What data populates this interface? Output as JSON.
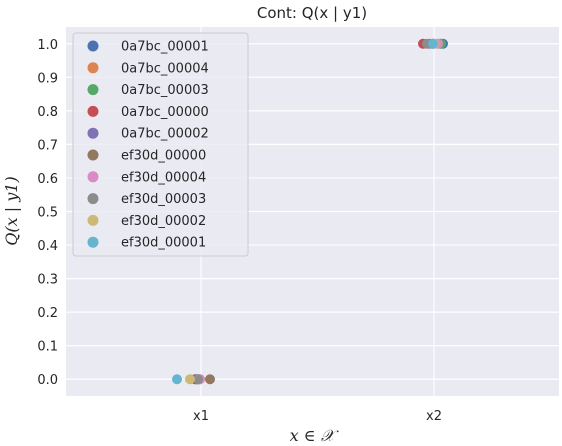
{
  "chart_data": {
    "type": "scatter",
    "title": "Cont: Q(x | y1)",
    "xlabel": "x ∈ 𝒳",
    "ylabel": "Q(x | y1)",
    "categories": [
      "x1",
      "x2"
    ],
    "ylim": [
      -0.05,
      1.05
    ],
    "yticks": [
      "0.0",
      "0.1",
      "0.2",
      "0.3",
      "0.4",
      "0.5",
      "0.6",
      "0.7",
      "0.8",
      "0.9",
      "1.0"
    ],
    "grid": true,
    "legend_position": "top-left",
    "series": [
      {
        "name": "0a7bc_00001",
        "color": "#4c72b0",
        "values": [
          0.0,
          1.0
        ]
      },
      {
        "name": "0a7bc_00004",
        "color": "#dd8452",
        "values": [
          0.0,
          1.0
        ]
      },
      {
        "name": "0a7bc_00003",
        "color": "#55a868",
        "values": [
          0.0,
          1.0
        ]
      },
      {
        "name": "0a7bc_00000",
        "color": "#c44e52",
        "values": [
          0.0,
          1.0
        ]
      },
      {
        "name": "0a7bc_00002",
        "color": "#8172b3",
        "values": [
          0.0,
          1.0
        ]
      },
      {
        "name": "ef30d_00000",
        "color": "#937860",
        "values": [
          0.0,
          1.0
        ]
      },
      {
        "name": "ef30d_00004",
        "color": "#da8bc3",
        "values": [
          0.0,
          1.0
        ]
      },
      {
        "name": "ef30d_00003",
        "color": "#8c8c8c",
        "values": [
          0.0,
          1.0
        ]
      },
      {
        "name": "ef30d_00002",
        "color": "#ccb974",
        "values": [
          0.0,
          1.0
        ]
      },
      {
        "name": "ef30d_00001",
        "color": "#64b5cd",
        "values": [
          0.0,
          1.0
        ]
      }
    ]
  }
}
